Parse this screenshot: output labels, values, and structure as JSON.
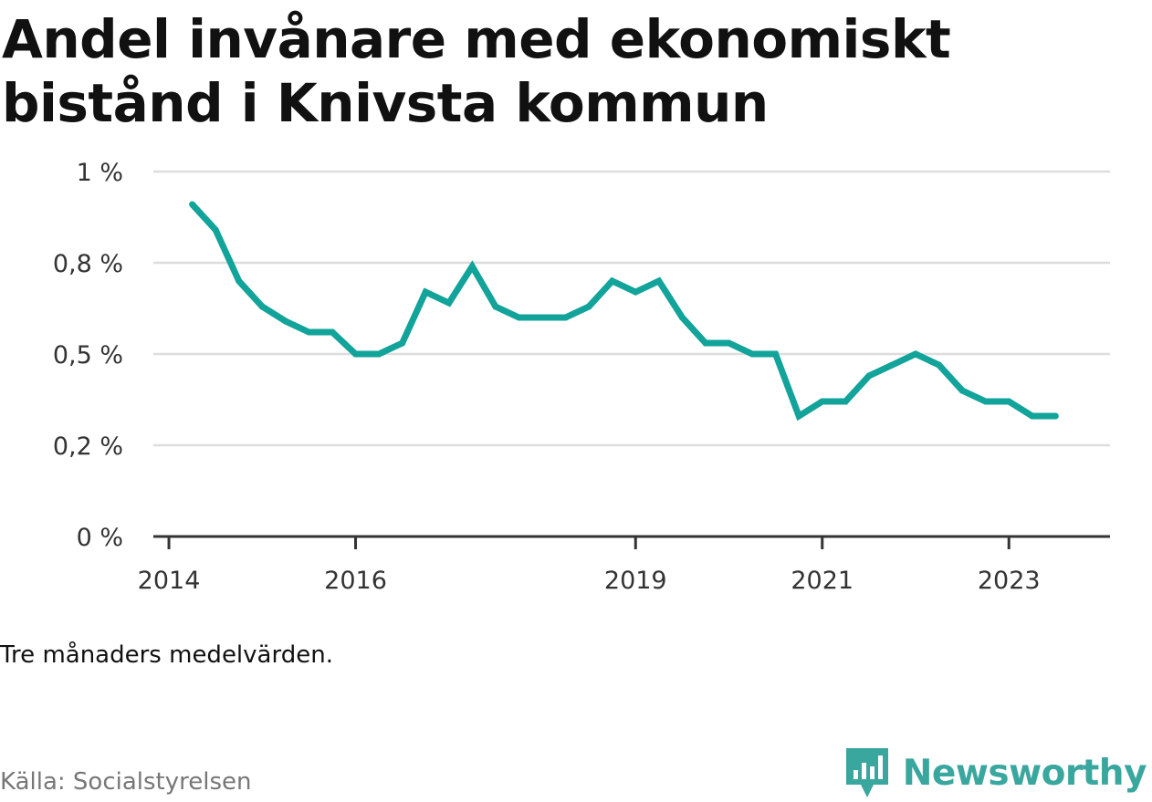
{
  "title": "Andel invånare med ekonomiskt bistånd i Knivsta kommun",
  "note": "Tre månaders medelvärden.",
  "source": "Källa: Socialstyrelsen",
  "brand": {
    "name": "Newsworthy",
    "icon": "newsworthy-logo-icon",
    "color": "#3aa79f"
  },
  "chart_data": {
    "type": "line",
    "title": "Andel invånare med ekonomiskt bistånd i Knivsta kommun",
    "xlabel": "",
    "ylabel": "",
    "x_ticks": [
      "2014",
      "2016",
      "2019",
      "2021",
      "2023"
    ],
    "y_ticks": [
      "0 %",
      "0,2 %",
      "0,5 %",
      "0,8 %",
      "1 %"
    ],
    "ylim": [
      0,
      1
    ],
    "xlim": [
      "2013-11",
      "2024-02"
    ],
    "grid": true,
    "legend": "none",
    "series": [
      {
        "color": "#12a39a",
        "points": [
          {
            "x": "2014-04",
            "y": 0.91
          },
          {
            "x": "2014-07",
            "y": 0.84
          },
          {
            "x": "2014-10",
            "y": 0.7
          },
          {
            "x": "2015-01",
            "y": 0.63
          },
          {
            "x": "2015-04",
            "y": 0.59
          },
          {
            "x": "2015-07",
            "y": 0.56
          },
          {
            "x": "2015-10",
            "y": 0.56
          },
          {
            "x": "2016-01",
            "y": 0.5
          },
          {
            "x": "2016-04",
            "y": 0.5
          },
          {
            "x": "2016-07",
            "y": 0.53
          },
          {
            "x": "2016-10",
            "y": 0.67
          },
          {
            "x": "2017-01",
            "y": 0.64
          },
          {
            "x": "2017-04",
            "y": 0.74
          },
          {
            "x": "2017-07",
            "y": 0.63
          },
          {
            "x": "2017-10",
            "y": 0.6
          },
          {
            "x": "2018-01",
            "y": 0.6
          },
          {
            "x": "2018-04",
            "y": 0.6
          },
          {
            "x": "2018-07",
            "y": 0.63
          },
          {
            "x": "2018-10",
            "y": 0.7
          },
          {
            "x": "2019-01",
            "y": 0.67
          },
          {
            "x": "2019-04",
            "y": 0.7
          },
          {
            "x": "2019-07",
            "y": 0.6
          },
          {
            "x": "2019-10",
            "y": 0.53
          },
          {
            "x": "2020-01",
            "y": 0.53
          },
          {
            "x": "2020-04",
            "y": 0.5
          },
          {
            "x": "2020-07",
            "y": 0.5
          },
          {
            "x": "2020-10",
            "y": 0.33
          },
          {
            "x": "2021-01",
            "y": 0.37
          },
          {
            "x": "2021-04",
            "y": 0.37
          },
          {
            "x": "2021-07",
            "y": 0.44
          },
          {
            "x": "2021-10",
            "y": 0.47
          },
          {
            "x": "2022-01",
            "y": 0.5
          },
          {
            "x": "2022-04",
            "y": 0.47
          },
          {
            "x": "2022-07",
            "y": 0.4
          },
          {
            "x": "2022-10",
            "y": 0.37
          },
          {
            "x": "2023-01",
            "y": 0.37
          },
          {
            "x": "2023-04",
            "y": 0.33
          },
          {
            "x": "2023-07",
            "y": 0.33
          }
        ]
      }
    ]
  }
}
